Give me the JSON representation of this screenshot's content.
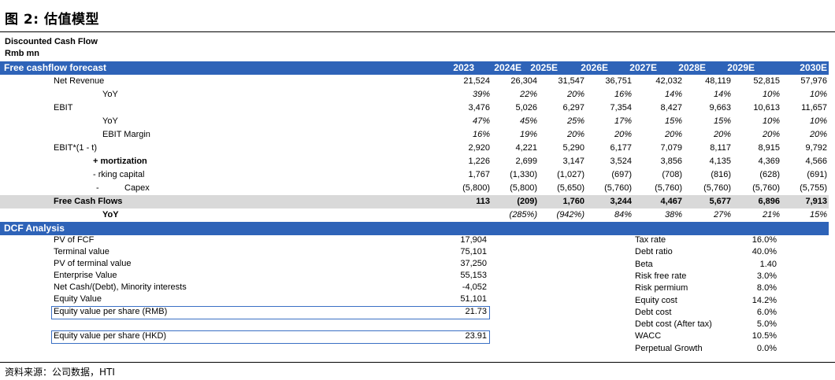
{
  "figure_title": "图 2: 估值模型",
  "header": {
    "line1": "Discounted Cash Flow",
    "line2": "Rmb mn"
  },
  "fcf_band": {
    "label": "Free cashflow forecast",
    "years": [
      "2023",
      "2024E",
      "2025E",
      "2026E",
      "2027E",
      "2028E",
      "2029E",
      "2030E"
    ]
  },
  "fcf_rows": [
    {
      "label": "Net Revenue",
      "values": [
        "21,524",
        "26,304",
        "31,547",
        "36,751",
        "42,032",
        "48,119",
        "52,815",
        "57,976"
      ]
    },
    {
      "label": "YoY",
      "values": [
        "39%",
        "22%",
        "20%",
        "16%",
        "14%",
        "14%",
        "10%",
        "10%"
      ]
    },
    {
      "label": "EBIT",
      "values": [
        "3,476",
        "5,026",
        "6,297",
        "7,354",
        "8,427",
        "9,663",
        "10,613",
        "11,657"
      ]
    },
    {
      "label": "YoY",
      "values": [
        "47%",
        "45%",
        "25%",
        "17%",
        "15%",
        "15%",
        "10%",
        "10%"
      ]
    },
    {
      "label": "EBIT Margin",
      "values": [
        "16%",
        "19%",
        "20%",
        "20%",
        "20%",
        "20%",
        "20%",
        "20%"
      ]
    },
    {
      "label": "EBIT*(1 - t)",
      "values": [
        "2,920",
        "4,221",
        "5,290",
        "6,177",
        "7,079",
        "8,117",
        "8,915",
        "9,792"
      ]
    },
    {
      "label": "+ mortization",
      "values": [
        "1,226",
        "2,699",
        "3,147",
        "3,524",
        "3,856",
        "4,135",
        "4,369",
        "4,566"
      ]
    },
    {
      "label": "- rking capital",
      "values": [
        "1,767",
        "(1,330)",
        "(1,027)",
        "(697)",
        "(708)",
        "(816)",
        "(628)",
        "(691)"
      ]
    },
    {
      "label_a": "-",
      "label_b": "Capex",
      "values": [
        "(5,800)",
        "(5,800)",
        "(5,650)",
        "(5,760)",
        "(5,760)",
        "(5,760)",
        "(5,760)",
        "(5,755)"
      ]
    },
    {
      "label": "Free Cash Flows",
      "values": [
        "113",
        "(209)",
        "1,760",
        "3,244",
        "4,467",
        "5,677",
        "6,896",
        "7,913"
      ]
    },
    {
      "label": "YoY",
      "values": [
        "",
        "(285%)",
        "(942%)",
        "84%",
        "38%",
        "27%",
        "21%",
        "15%"
      ]
    }
  ],
  "dcf_band": {
    "label": "DCF Analysis"
  },
  "dcf_left": [
    {
      "label": "PV of FCF",
      "value": "17,904"
    },
    {
      "label": "Terminal value",
      "value": "75,101"
    },
    {
      "label": "PV of terminal value",
      "value": "37,250"
    },
    {
      "label": "Enterprise Value",
      "value": "55,153"
    },
    {
      "label": "Net Cash/(Debt), Minority interests",
      "value": "-4,052"
    },
    {
      "label": "Equity Value",
      "value": "51,101"
    },
    {
      "label": "Equity value per share (RMB)",
      "value": "21.73"
    },
    {
      "label": "Equity value per share (HKD)",
      "value": "23.91"
    }
  ],
  "dcf_right": [
    {
      "label": "Tax rate",
      "value": "16.0%"
    },
    {
      "label": "Debt ratio",
      "value": "40.0%"
    },
    {
      "label": "Beta",
      "value": "1.40"
    },
    {
      "label": "Risk free rate",
      "value": "3.0%"
    },
    {
      "label": "Risk permium",
      "value": "8.0%"
    },
    {
      "label": "Equity cost",
      "value": "14.2%"
    },
    {
      "label": "Debt cost",
      "value": "6.0%"
    },
    {
      "label": "Debt cost (After tax)",
      "value": "5.0%"
    },
    {
      "label": "WACC",
      "value": "10.5%"
    },
    {
      "label": "Perpetual Growth",
      "value": "0.0%"
    }
  ],
  "source": "资料来源：公司数据，HTI"
}
